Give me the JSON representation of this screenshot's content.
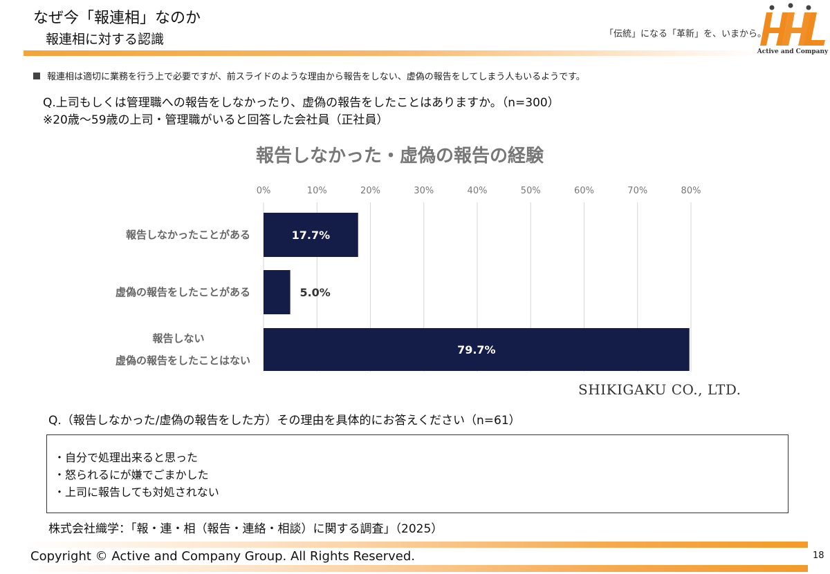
{
  "header": {
    "title": "なぜ今「報連相」なのか",
    "subtitle": "報連相に対する認識",
    "tagline": "「伝統」になる「革新」を、いまから。",
    "logo_text": "Active and Company",
    "logo_color": "#f08a1c"
  },
  "intro_text": "報連相は適切に業務を行う上で必要ですが、前スライドのような理由から報告をしない、虚偽の報告をしてしまう人もいるようです。",
  "question1": {
    "line1": "Q.上司もしくは管理職への報告をしなかったり、虚偽の報告をしたことはありますか。（n=300）",
    "line2": "※20歳～59歳の上司・管理職がいると回答した会社員（正社員）"
  },
  "chart_data": {
    "type": "bar",
    "orientation": "horizontal",
    "title": "報告しなかった・虚偽の報告の経験",
    "categories": [
      [
        "報告しなかったことがある"
      ],
      [
        "虚偽の報告をしたことがある"
      ],
      [
        "報告しない",
        "虚偽の報告をしたことはない"
      ]
    ],
    "values": [
      17.7,
      5.0,
      79.7
    ],
    "value_labels": [
      "17.7%",
      "5.0%",
      "79.7%"
    ],
    "xlim": [
      0,
      80
    ],
    "ticks": [
      "0%",
      "10%",
      "20%",
      "30%",
      "40%",
      "50%",
      "60%",
      "70%",
      "80%"
    ],
    "tick_values": [
      0,
      10,
      20,
      30,
      40,
      50,
      60,
      70,
      80
    ],
    "grid": true,
    "bar_color": "#141c48",
    "credit": "SHIKIGAKU CO., LTD."
  },
  "question2": "Q.（報告しなかった/虚偽の報告をした方）その理由を具体的にお答えください（n=61）",
  "reasons": [
    "・自分で処理出来ると思った",
    "・怒られるにが嫌でごまかした",
    "・上司に報告しても対処されない"
  ],
  "source": "株式会社織学：「報・連・相（報告・連絡・相談）に関する調査」（2025）",
  "footer": {
    "copyright": "Copyright © Active and Company Group. All Rights Reserved.",
    "page_number": "18"
  }
}
